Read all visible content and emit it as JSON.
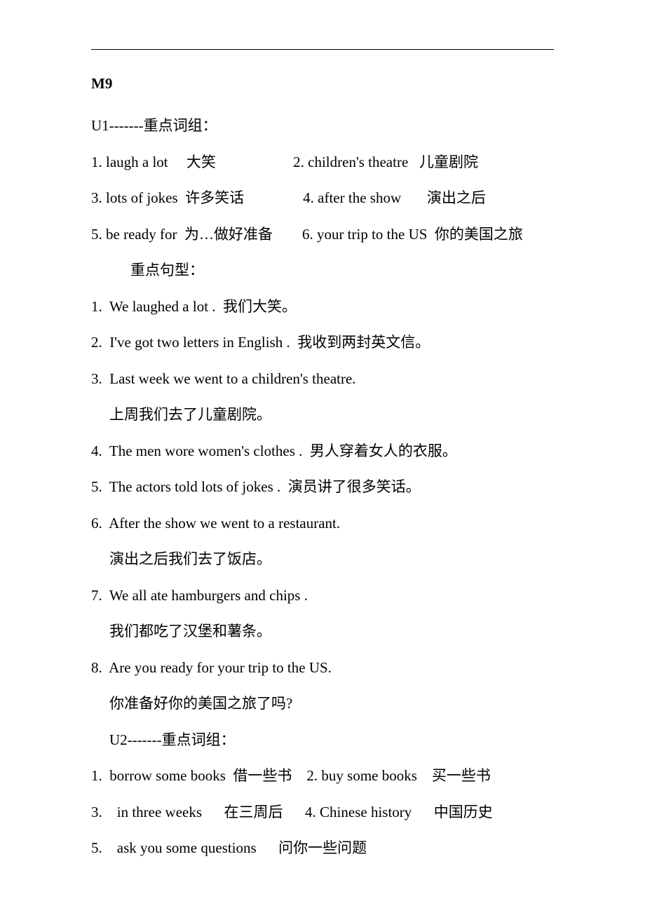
{
  "module_title": "M9",
  "u1_header": "U1-------重点词组：",
  "u1_phrases": [
    "1. laugh a lot     大笑                     2. children's theatre   儿童剧院",
    "3. lots of jokes  许多笑话                4. after the show       演出之后",
    "5. be ready for  为…做好准备        6. your trip to the US  你的美国之旅"
  ],
  "u1_sentence_header": "重点句型：",
  "u1_sentences": [
    {
      "en": "1.  We laughed a lot .  我们大笑。"
    },
    {
      "en": "2.  I've got two letters in English .  我收到两封英文信。"
    },
    {
      "en": "3.  Last week we went to a children's theatre.",
      "zh": "上周我们去了儿童剧院。"
    },
    {
      "en": "4.  The men wore women's clothes .  男人穿着女人的衣服。"
    },
    {
      "en": "5.  The actors told lots of jokes .  演员讲了很多笑话。"
    },
    {
      "en": "6.  After the show we went to a restaurant.",
      "zh": "演出之后我们去了饭店。"
    },
    {
      "en": "7.  We all ate hamburgers and chips .",
      "zh": "我们都吃了汉堡和薯条。"
    },
    {
      "en": "8.  Are you ready for your trip to the US.",
      "zh": "你准备好你的美国之旅了吗?"
    }
  ],
  "u2_header": "U2-------重点词组：",
  "u2_phrases": [
    "1.  borrow some books  借一些书    2. buy some books    买一些书",
    "3.    in three weeks      在三周后      4. Chinese history      中国历史",
    "5.    ask you some questions      问你一些问题"
  ]
}
